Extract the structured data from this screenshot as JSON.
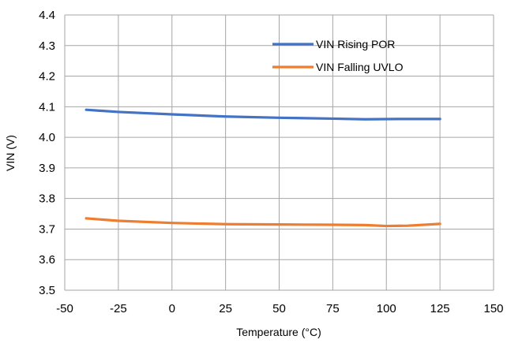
{
  "chart_data": {
    "type": "line",
    "title": "",
    "xlabel": "Temperature (°C)",
    "ylabel": "VIN (V)",
    "xlim": [
      -50,
      150
    ],
    "ylim": [
      3.5,
      4.4
    ],
    "x_ticks": [
      -50,
      -25,
      0,
      25,
      50,
      75,
      100,
      125,
      150
    ],
    "y_ticks": [
      3.5,
      3.6,
      3.7,
      3.8,
      3.9,
      4.0,
      4.1,
      4.2,
      4.3,
      4.4
    ],
    "x_tick_labels": [
      "-50",
      "-25",
      "0",
      "25",
      "50",
      "75",
      "100",
      "125",
      "150"
    ],
    "y_tick_labels": [
      "3.5",
      "3.6",
      "3.7",
      "3.8",
      "3.9",
      "4.0",
      "4.1",
      "4.2",
      "4.3",
      "4.4"
    ],
    "grid": true,
    "legend_position": "top-right",
    "series": [
      {
        "name": "VIN Rising POR",
        "color": "#4472C4",
        "x": [
          -40,
          -25,
          0,
          25,
          50,
          75,
          90,
          105,
          125
        ],
        "y": [
          4.09,
          4.083,
          4.075,
          4.068,
          4.064,
          4.061,
          4.059,
          4.06,
          4.06
        ]
      },
      {
        "name": "VIN Falling UVLO",
        "color": "#ED7D31",
        "x": [
          -40,
          -25,
          0,
          25,
          50,
          75,
          90,
          100,
          110,
          125
        ],
        "y": [
          3.735,
          3.727,
          3.72,
          3.716,
          3.715,
          3.714,
          3.713,
          3.71,
          3.711,
          3.717
        ]
      }
    ]
  }
}
